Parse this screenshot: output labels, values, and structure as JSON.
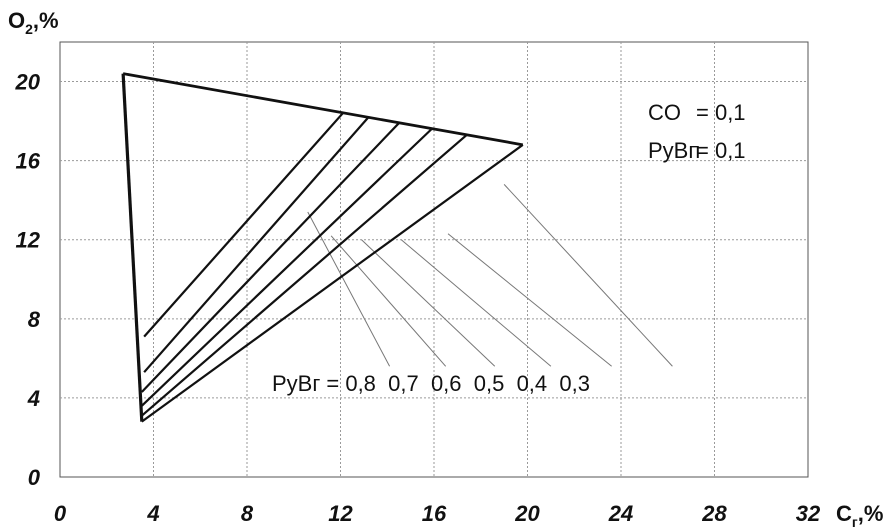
{
  "chart_data": {
    "type": "line",
    "title": "",
    "xlabel": "C",
    "xlabel_sub": "г",
    "xlabel_unit": ",%",
    "ylabel": "O",
    "ylabel_sub": "2",
    "ylabel_unit": ",%",
    "xlim": [
      0,
      32
    ],
    "ylim": [
      0,
      22
    ],
    "xticks": [
      "0",
      "4",
      "8",
      "12",
      "16",
      "20",
      "24",
      "28",
      "32"
    ],
    "yticks": [
      "0",
      "4",
      "8",
      "12",
      "16",
      "20"
    ],
    "grid": true,
    "boundary": {
      "upper": [
        [
          2.7,
          20.4
        ],
        [
          19.8,
          16.8
        ]
      ],
      "left": [
        [
          2.7,
          20.4
        ],
        [
          3.5,
          2.8
        ]
      ]
    },
    "series": [
      {
        "value": "0,8",
        "points": [
          [
            3.6,
            7.1
          ],
          [
            12.1,
            18.4
          ]
        ]
      },
      {
        "value": "0,7",
        "points": [
          [
            3.6,
            5.3
          ],
          [
            13.2,
            18.2
          ]
        ]
      },
      {
        "value": "0,6",
        "points": [
          [
            3.5,
            4.3
          ],
          [
            14.5,
            17.9
          ]
        ]
      },
      {
        "value": "0,5",
        "points": [
          [
            3.5,
            3.6
          ],
          [
            15.9,
            17.6
          ]
        ]
      },
      {
        "value": "0,4",
        "points": [
          [
            3.5,
            3.1
          ],
          [
            17.4,
            17.3
          ]
        ]
      },
      {
        "value": "0,3",
        "points": [
          [
            3.5,
            2.8
          ],
          [
            19.8,
            16.8
          ]
        ]
      }
    ],
    "leaders": [
      {
        "from": [
          10.6,
          13.4
        ],
        "to": [
          14.1,
          5.6
        ]
      },
      {
        "from": [
          11.6,
          12.2
        ],
        "to": [
          16.5,
          5.6
        ]
      },
      {
        "from": [
          12.9,
          12.0
        ],
        "to": [
          18.6,
          5.6
        ]
      },
      {
        "from": [
          14.6,
          12.0
        ],
        "to": [
          21.0,
          5.6
        ]
      },
      {
        "from": [
          16.6,
          12.3
        ],
        "to": [
          23.6,
          5.6
        ]
      },
      {
        "from": [
          19.0,
          14.8
        ],
        "to": [
          26.2,
          5.6
        ]
      }
    ],
    "annotations": {
      "co_label": "CO",
      "co_value": "= 0,1",
      "pyvn_label": "РуВп",
      "pyvn_value": "= 0,1",
      "pyvg_label": "РуВг",
      "pyvg_values": "= 0,8  0,7  0,6  0,5  0,4  0,3"
    }
  }
}
